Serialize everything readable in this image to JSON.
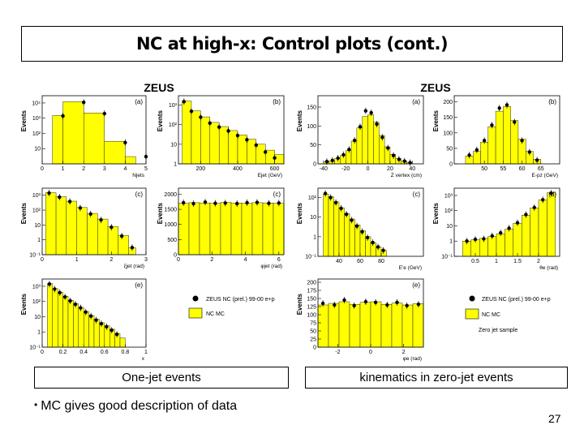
{
  "slide": {
    "title": "NC at high-x: Control plots (cont.)",
    "captions": {
      "left": "One-jet events",
      "right": "kinematics in zero-jet events"
    },
    "bullet": "MC gives good description of data",
    "page_number": "27",
    "bullet_symbol": "•"
  },
  "figures": {
    "left_header": "ZEUS",
    "right_header": "ZEUS",
    "legend_left": {
      "data": "ZEUS NC (prel.) 99-00 e+p",
      "mc": "NC MC"
    },
    "legend_right": {
      "data": "ZEUS NC (prel.) 99-00 e+p",
      "mc": "NC MC",
      "note": "Zero jet sample"
    }
  },
  "colors": {
    "mc_fill": "#ffff00",
    "data_marker": "#000000",
    "axis": "#000000"
  },
  "chart_data": [
    {
      "id": "L-a",
      "type": "bar",
      "tag": "(a)",
      "ylabel": "Events",
      "xlabel": "Njets",
      "xlim": [
        0,
        5
      ],
      "ylog": true,
      "ylim": [
        1,
        30000
      ],
      "yticks": [
        {
          "v": 10,
          "t": "10"
        },
        {
          "v": 100,
          "t": "10²"
        },
        {
          "v": 1000,
          "t": "10³"
        },
        {
          "v": 10000,
          "t": "10⁴"
        }
      ],
      "xticks": [
        {
          "v": 0,
          "t": "0"
        },
        {
          "v": 1,
          "t": "1"
        },
        {
          "v": 2,
          "t": "2"
        },
        {
          "v": 3,
          "t": "3"
        },
        {
          "v": 4,
          "t": "4"
        },
        {
          "v": 5,
          "t": "5"
        }
      ],
      "mc_edges": [
        0,
        0.5,
        1,
        2,
        3,
        4,
        4.5
      ],
      "mc_values": [
        1,
        1500,
        12000,
        2200,
        30,
        3
      ],
      "points_x": [
        1,
        2,
        3,
        4,
        5
      ],
      "points_y": [
        1400,
        11000,
        2000,
        25,
        3
      ]
    },
    {
      "id": "L-b",
      "type": "bar",
      "tag": "(b)",
      "ylabel": "Events",
      "xlabel": "Ejet (GeV)",
      "xlim": [
        80,
        650
      ],
      "ylog": true,
      "ylim": [
        1,
        3000
      ],
      "yticks": [
        {
          "v": 1,
          "t": "1"
        },
        {
          "v": 10,
          "t": "10"
        },
        {
          "v": 100,
          "t": "10²"
        },
        {
          "v": 1000,
          "t": "10³"
        }
      ],
      "xticks": [
        {
          "v": 200,
          "t": "200"
        },
        {
          "v": 400,
          "t": "400"
        },
        {
          "v": 600,
          "t": "600"
        }
      ],
      "mc_edges": [
        100,
        150,
        200,
        250,
        300,
        350,
        400,
        450,
        500,
        550,
        600,
        650
      ],
      "mc_values": [
        1600,
        500,
        250,
        130,
        80,
        50,
        30,
        18,
        10,
        5,
        3
      ],
      "points_x": [
        110,
        150,
        200,
        250,
        300,
        350,
        400,
        450,
        500,
        550,
        600
      ],
      "points_y": [
        1500,
        480,
        240,
        120,
        75,
        48,
        28,
        17,
        9,
        4,
        2
      ]
    },
    {
      "id": "L-c",
      "type": "bar",
      "tag": "(c)",
      "ylabel": "Events",
      "xlabel": "ξjet (rad)",
      "xlim": [
        0,
        3
      ],
      "ylog": true,
      "ylim": [
        0.1,
        3000
      ],
      "yticks": [
        {
          "v": 0.1,
          "t": "10⁻¹"
        },
        {
          "v": 1,
          "t": "1"
        },
        {
          "v": 10,
          "t": "10"
        },
        {
          "v": 100,
          "t": "10²"
        },
        {
          "v": 1000,
          "t": "10³"
        }
      ],
      "xticks": [
        {
          "v": 0,
          "t": "0"
        },
        {
          "v": 1,
          "t": "1"
        },
        {
          "v": 2,
          "t": "2"
        },
        {
          "v": 3,
          "t": "3"
        }
      ],
      "mc_edges": [
        0.1,
        0.4,
        0.7,
        1.0,
        1.3,
        1.6,
        1.9,
        2.2,
        2.5,
        2.7
      ],
      "mc_values": [
        1500,
        800,
        400,
        150,
        60,
        25,
        8,
        2,
        0.3
      ],
      "points_x": [
        0.2,
        0.5,
        0.8,
        1.1,
        1.4,
        1.7,
        2.0,
        2.3,
        2.6
      ],
      "points_y": [
        1400,
        750,
        380,
        140,
        55,
        22,
        7,
        1.8,
        0.3
      ]
    },
    {
      "id": "L-d",
      "type": "bar",
      "tag": "(c)",
      "ylabel": "Events",
      "xlabel": "φjet (rad)",
      "xlim": [
        0,
        6.3
      ],
      "ylog": false,
      "ylim": [
        0,
        2200
      ],
      "yticks": [
        {
          "v": 0,
          "t": "0"
        },
        {
          "v": 500,
          "t": "500"
        },
        {
          "v": 1000,
          "t": "1000"
        },
        {
          "v": 1500,
          "t": "1500"
        },
        {
          "v": 2000,
          "t": "2000"
        }
      ],
      "xticks": [
        {
          "v": 0,
          "t": "0"
        },
        {
          "v": 2,
          "t": "2"
        },
        {
          "v": 4,
          "t": "4"
        },
        {
          "v": 6,
          "t": "6"
        }
      ],
      "mc_edges": [
        0,
        0.63,
        1.26,
        1.89,
        2.52,
        3.15,
        3.78,
        4.41,
        5.04,
        5.67,
        6.3
      ],
      "mc_values": [
        1700,
        1720,
        1710,
        1700,
        1730,
        1710,
        1700,
        1720,
        1710,
        1700
      ],
      "points_x": [
        0.3,
        0.9,
        1.6,
        2.2,
        2.8,
        3.5,
        4.1,
        4.7,
        5.4,
        6.0
      ],
      "points_y": [
        1720,
        1690,
        1740,
        1700,
        1710,
        1690,
        1720,
        1730,
        1700,
        1710
      ]
    },
    {
      "id": "L-e",
      "type": "bar",
      "tag": "(e)",
      "ylabel": "Events",
      "xlabel": "x",
      "xlim": [
        0,
        1
      ],
      "ylog": true,
      "ylim": [
        0.1,
        3000
      ],
      "yticks": [
        {
          "v": 0.1,
          "t": "10⁻¹"
        },
        {
          "v": 1,
          "t": "1"
        },
        {
          "v": 10,
          "t": "10"
        },
        {
          "v": 100,
          "t": "10²"
        },
        {
          "v": 1000,
          "t": "10³"
        }
      ],
      "xticks": [
        {
          "v": 0,
          "t": "0"
        },
        {
          "v": 0.2,
          "t": "0.2"
        },
        {
          "v": 0.4,
          "t": "0.4"
        },
        {
          "v": 0.6,
          "t": "0.6"
        },
        {
          "v": 0.8,
          "t": "0.8"
        },
        {
          "v": 1,
          "t": "1"
        }
      ],
      "mc_edges": [
        0.05,
        0.1,
        0.15,
        0.2,
        0.25,
        0.3,
        0.35,
        0.4,
        0.45,
        0.5,
        0.55,
        0.6,
        0.65,
        0.7,
        0.75,
        0.8
      ],
      "mc_values": [
        1500,
        700,
        400,
        220,
        120,
        70,
        40,
        22,
        12,
        7,
        4,
        2.5,
        1.5,
        0.8,
        0.4
      ],
      "points_x": [
        0.07,
        0.12,
        0.17,
        0.22,
        0.27,
        0.32,
        0.37,
        0.42,
        0.47,
        0.52,
        0.57,
        0.62,
        0.67,
        0.72
      ],
      "points_y": [
        1400,
        650,
        380,
        200,
        110,
        65,
        38,
        20,
        11,
        6,
        3.5,
        2.2,
        1.3,
        0.7
      ]
    },
    {
      "id": "R-a",
      "type": "bar",
      "tag": "(a)",
      "ylabel": "Events",
      "xlabel": "Z vertex (cm)",
      "xlim": [
        -45,
        50
      ],
      "ylog": false,
      "ylim": [
        0,
        180
      ],
      "yticks": [
        {
          "v": 0,
          "t": "0"
        },
        {
          "v": 50,
          "t": "50"
        },
        {
          "v": 100,
          "t": "100"
        },
        {
          "v": 150,
          "t": "150"
        }
      ],
      "xticks": [
        {
          "v": -40,
          "t": "-40"
        },
        {
          "v": -20,
          "t": "-20"
        },
        {
          "v": 0,
          "t": "0"
        },
        {
          "v": 20,
          "t": "20"
        },
        {
          "v": 40,
          "t": "40"
        }
      ],
      "mc_edges": [
        -40,
        -35,
        -30,
        -25,
        -20,
        -15,
        -10,
        -5,
        0,
        5,
        10,
        15,
        20,
        25,
        30,
        35,
        40
      ],
      "mc_values": [
        5,
        8,
        14,
        22,
        35,
        60,
        95,
        125,
        130,
        110,
        75,
        45,
        25,
        14,
        8,
        4
      ],
      "points_x": [
        -37,
        -32,
        -27,
        -22,
        -17,
        -12,
        -7,
        -2,
        3,
        8,
        13,
        18,
        23,
        28,
        33,
        38
      ],
      "points_y": [
        6,
        9,
        15,
        24,
        38,
        62,
        98,
        140,
        135,
        105,
        70,
        42,
        22,
        12,
        7,
        3
      ]
    },
    {
      "id": "R-b",
      "type": "bar",
      "tag": "(b)",
      "ylabel": "Events",
      "xlabel": "E-pz (GeV)",
      "xlim": [
        42,
        70
      ],
      "ylog": false,
      "ylim": [
        0,
        220
      ],
      "yticks": [
        {
          "v": 0,
          "t": "0"
        },
        {
          "v": 50,
          "t": "50"
        },
        {
          "v": 100,
          "t": "100"
        },
        {
          "v": 150,
          "t": "150"
        },
        {
          "v": 200,
          "t": "200"
        }
      ],
      "xticks": [
        {
          "v": 50,
          "t": "50"
        },
        {
          "v": 55,
          "t": "55"
        },
        {
          "v": 60,
          "t": "60"
        },
        {
          "v": 65,
          "t": "65"
        }
      ],
      "mc_edges": [
        45,
        47,
        49,
        51,
        53,
        55,
        57,
        59,
        61,
        63,
        65
      ],
      "mc_values": [
        25,
        40,
        70,
        120,
        170,
        185,
        140,
        80,
        40,
        15
      ],
      "points_x": [
        46,
        48,
        50,
        52,
        54,
        56,
        58,
        60,
        62,
        64
      ],
      "points_y": [
        28,
        45,
        75,
        125,
        180,
        190,
        135,
        75,
        38,
        12
      ]
    },
    {
      "id": "R-c",
      "type": "bar",
      "tag": "(c)",
      "ylabel": "Events",
      "xlabel": "E'e (GeV)",
      "xlim": [
        20,
        120
      ],
      "ylog": true,
      "ylim": [
        0.1,
        300
      ],
      "yticks": [
        {
          "v": 0.1,
          "t": "10⁻¹"
        },
        {
          "v": 1,
          "t": "1"
        },
        {
          "v": 10,
          "t": "10"
        },
        {
          "v": 100,
          "t": "10²"
        }
      ],
      "xticks": [
        {
          "v": 40,
          "t": "40"
        },
        {
          "v": 60,
          "t": "60"
        },
        {
          "v": 80,
          "t": "80"
        }
      ],
      "mc_edges": [
        25,
        30,
        35,
        40,
        45,
        50,
        55,
        60,
        65,
        70,
        75,
        80,
        85
      ],
      "mc_values": [
        150,
        110,
        60,
        30,
        15,
        8,
        4,
        2,
        1,
        0.5,
        0.3,
        0.2
      ],
      "points_x": [
        27,
        32,
        37,
        42,
        47,
        52,
        57,
        62,
        67,
        72,
        77,
        82
      ],
      "points_y": [
        160,
        100,
        55,
        28,
        14,
        7,
        3.5,
        1.8,
        0.9,
        0.5,
        0.3,
        0.2
      ]
    },
    {
      "id": "R-d",
      "type": "bar",
      "tag": "(d)",
      "ylabel": "Events",
      "xlabel": "θe (rad)",
      "xlim": [
        0,
        2.5
      ],
      "ylog": true,
      "ylim": [
        0.1,
        3000
      ],
      "yticks": [
        {
          "v": 0.1,
          "t": "10⁻¹"
        },
        {
          "v": 1,
          "t": "1"
        },
        {
          "v": 10,
          "t": "10"
        },
        {
          "v": 100,
          "t": "10²"
        },
        {
          "v": 1000,
          "t": "10³"
        }
      ],
      "xticks": [
        {
          "v": 0.5,
          "t": "0.5"
        },
        {
          "v": 1,
          "t": "1"
        },
        {
          "v": 1.5,
          "t": "1.5"
        },
        {
          "v": 2,
          "t": "2"
        }
      ],
      "mc_edges": [
        0.2,
        0.4,
        0.6,
        0.8,
        1.0,
        1.2,
        1.4,
        1.6,
        1.8,
        2.0,
        2.2,
        2.4
      ],
      "mc_values": [
        1,
        1.2,
        1.5,
        2,
        3,
        6,
        15,
        50,
        150,
        500,
        1500
      ],
      "points_x": [
        0.3,
        0.5,
        0.7,
        0.9,
        1.1,
        1.3,
        1.5,
        1.7,
        1.9,
        2.1,
        2.3
      ],
      "points_y": [
        1,
        1.3,
        1.4,
        2.2,
        3.5,
        7,
        16,
        55,
        160,
        520,
        1400
      ]
    },
    {
      "id": "R-e",
      "type": "bar",
      "tag": "(e)",
      "ylabel": "Events",
      "xlabel": "φe (rad)",
      "xlim": [
        -3.2,
        3.2
      ],
      "ylog": false,
      "ylim": [
        0,
        210
      ],
      "yticks": [
        {
          "v": 0,
          "t": "0"
        },
        {
          "v": 25,
          "t": "25"
        },
        {
          "v": 50,
          "t": "50"
        },
        {
          "v": 75,
          "t": "75"
        },
        {
          "v": 100,
          "t": "100"
        },
        {
          "v": 125,
          "t": "125"
        },
        {
          "v": 150,
          "t": "150"
        },
        {
          "v": 175,
          "t": "175"
        },
        {
          "v": 200,
          "t": "200"
        }
      ],
      "xticks": [
        {
          "v": -2,
          "t": "-2"
        },
        {
          "v": 0,
          "t": "0"
        },
        {
          "v": 2,
          "t": "2"
        }
      ],
      "mc_edges": [
        -3.2,
        -2.56,
        -1.92,
        -1.28,
        -0.64,
        0,
        0.64,
        1.28,
        1.92,
        2.56,
        3.2
      ],
      "mc_values": [
        130,
        135,
        140,
        132,
        138,
        140,
        132,
        136,
        130,
        134
      ],
      "points_x": [
        -2.9,
        -2.2,
        -1.6,
        -1.0,
        -0.3,
        0.3,
        1.0,
        1.6,
        2.2,
        2.9
      ],
      "points_y": [
        135,
        130,
        145,
        128,
        140,
        138,
        130,
        138,
        128,
        132
      ]
    }
  ]
}
